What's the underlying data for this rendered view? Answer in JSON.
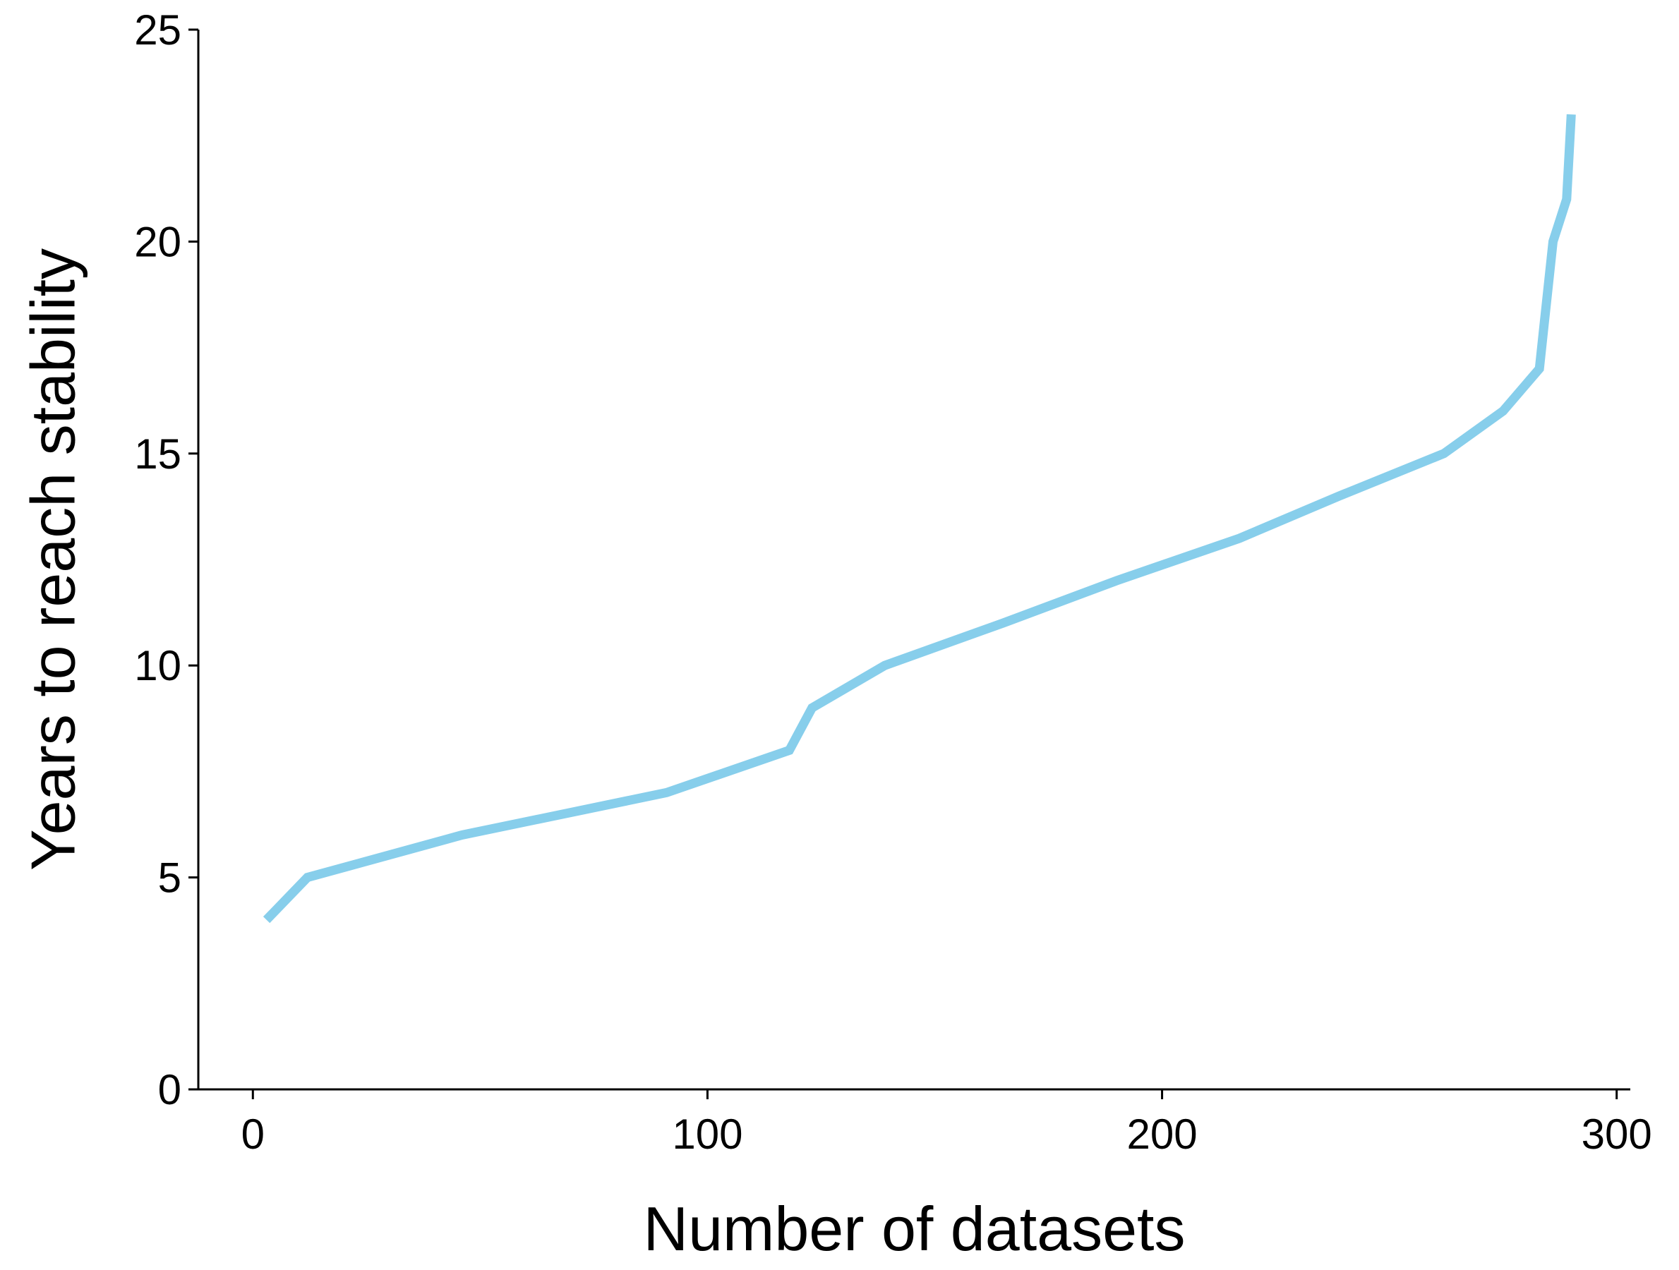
{
  "chart_data": {
    "type": "line",
    "title": "",
    "xlabel": "Number of datasets",
    "ylabel": "Years to reach stability",
    "xlim": [
      -12,
      303
    ],
    "ylim": [
      0,
      25
    ],
    "xticks": [
      0,
      100,
      200,
      300
    ],
    "yticks": [
      0,
      5,
      10,
      15,
      20,
      25
    ],
    "xtick_labels": [
      "0",
      "100",
      "200",
      "300"
    ],
    "ytick_labels": [
      "0",
      "5",
      "10",
      "15",
      "20",
      "25"
    ],
    "grid": false,
    "legend": "none",
    "series": [
      {
        "color": "#87CEEB",
        "x": [
          3,
          12,
          46,
          91,
          118,
          123,
          139,
          165,
          190,
          217,
          239,
          262,
          275,
          283,
          284,
          286,
          289,
          290
        ],
        "y": [
          4,
          5,
          6,
          7,
          8,
          9,
          10,
          11,
          12,
          13,
          14,
          15,
          16,
          17,
          18,
          20,
          21,
          23
        ]
      }
    ]
  }
}
